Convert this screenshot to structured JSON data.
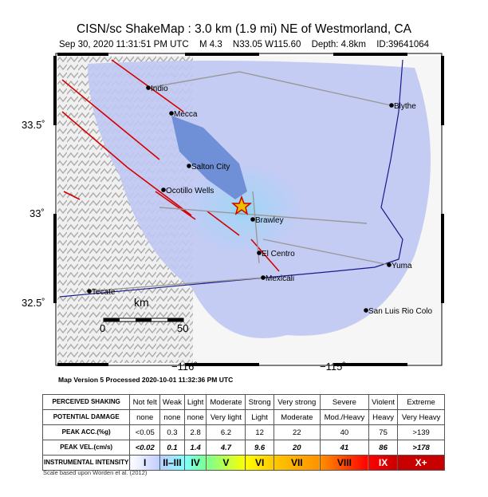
{
  "header": {
    "title": "CISN/sc ShakeMap : 3.0 km (1.9 mi) NE of Westmorland, CA",
    "date": "Sep 30, 2020 11:31:51 PM UTC",
    "magnitude": "M 4.3",
    "location": "N33.05 W115.60",
    "depth": "Depth: 4.8km",
    "id": "ID:39641064"
  },
  "map": {
    "lat_labels": [
      "33.5˚",
      "33˚",
      "32.5˚"
    ],
    "lon_labels": [
      "−116˚",
      "−115˚"
    ],
    "cities": [
      "Indio",
      "Mecca",
      "Salton City",
      "Ocotillo Wells",
      "Brawley",
      "El Centro",
      "Mexicali",
      "Yuma",
      "Blythe",
      "Tecate",
      "San Luis Rio Colo"
    ],
    "scalebar": {
      "unit": "km",
      "start": "0",
      "end": "50"
    },
    "epicenter_icon": "star-icon",
    "colors": {
      "fault": "#d40000",
      "border": "#1a1a8c",
      "shaking": "#a8c4f2",
      "lake": "#6f8fd6",
      "epicenter": "#e8c000"
    }
  },
  "version_text": "Map Version 5 Processed 2020-10-01 11:32:36 PM UTC",
  "legend": {
    "row_headers": [
      "PERCEIVED SHAKING",
      "POTENTIAL DAMAGE",
      "PEAK ACC.(%g)",
      "PEAK VEL.(cm/s)",
      "INSTRUMENTAL INTENSITY"
    ],
    "shaking": [
      "Not felt",
      "Weak",
      "Light",
      "Moderate",
      "Strong",
      "Very strong",
      "Severe",
      "Violent",
      "Extreme"
    ],
    "damage": [
      "none",
      "none",
      "none",
      "Very light",
      "Light",
      "Moderate",
      "Mod./Heavy",
      "Heavy",
      "Very Heavy"
    ],
    "acc": [
      "<0.05",
      "0.3",
      "2.8",
      "6.2",
      "12",
      "22",
      "40",
      "75",
      ">139"
    ],
    "vel": [
      "<0.02",
      "0.1",
      "1.4",
      "4.7",
      "9.6",
      "20",
      "41",
      "86",
      ">178"
    ],
    "intensity": [
      "I",
      "II–III",
      "IV",
      "V",
      "VI",
      "VII",
      "VIII",
      "IX",
      "X+"
    ],
    "intensity_colors": [
      "#ffffff",
      "#bfccff",
      "#80ffff",
      "#7aff93",
      "#ffff00",
      "#ffc800",
      "#ff9100",
      "#ff0000",
      "#c80000"
    ],
    "note": "Scale based upon Worden et al. (2012)"
  }
}
